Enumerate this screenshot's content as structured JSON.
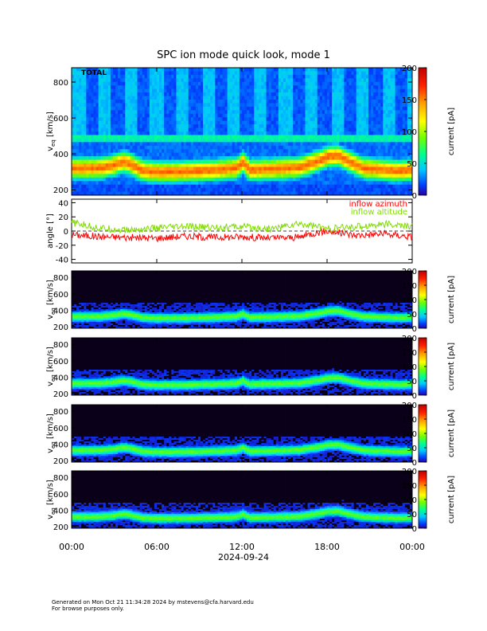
{
  "title": "SPC ion mode quick look, mode 1",
  "chart_data": [
    {
      "type": "heatmap",
      "panel_label": "TOTAL",
      "ylabel": "v_eq [km/s]",
      "ylim": [
        170,
        880
      ],
      "y_ticks": [
        200,
        400,
        600,
        800
      ],
      "colorbar": {
        "label": "current [pA]",
        "range": [
          0,
          200
        ],
        "ticks": [
          0,
          50,
          100,
          150,
          200
        ]
      },
      "x_ticks": [
        "00:00",
        "06:00",
        "12:00",
        "18:00",
        "00:00"
      ],
      "ridge_profile": {
        "time_hours": [
          0,
          1,
          2,
          3,
          3.5,
          4,
          5,
          6,
          8,
          10,
          11.5,
          12,
          12.5,
          14,
          16,
          17.3,
          18,
          18.7,
          19.5,
          20.5,
          22,
          23,
          24
        ],
        "speed_km_s": [
          320,
          320,
          322,
          338,
          355,
          345,
          305,
          300,
          302,
          310,
          320,
          350,
          310,
          315,
          325,
          360,
          385,
          390,
          355,
          320,
          310,
          305,
          310
        ]
      }
    },
    {
      "type": "line",
      "ylabel": "angle [°]",
      "ylim": [
        -45,
        45
      ],
      "y_ticks": [
        -40,
        -20,
        0,
        20,
        40
      ],
      "series": [
        {
          "name": "inflow azimuth",
          "color": "#ff0000",
          "x_hours": [
            0,
            2,
            4,
            6,
            8,
            10,
            12,
            14,
            16,
            17,
            18,
            20,
            22,
            24
          ],
          "values": [
            -5,
            -8,
            -9,
            -10,
            -7,
            -9,
            -8,
            -10,
            -9,
            -3,
            0,
            -6,
            -4,
            -8
          ]
        },
        {
          "name": "inflow altitude",
          "color": "#7fdc00",
          "x_hours": [
            0,
            2,
            4,
            6,
            8,
            10,
            12,
            14,
            16,
            17,
            18,
            20,
            22,
            24
          ],
          "values": [
            12,
            4,
            1,
            4,
            6,
            5,
            6,
            3,
            10,
            8,
            3,
            6,
            10,
            6
          ]
        }
      ]
    },
    {
      "type": "heatmap",
      "ylabel": "v_eq [km/s]",
      "ylim": [
        180,
        880
      ],
      "y_ticks": [
        200,
        400,
        600,
        800
      ],
      "colorbar": {
        "label": "current [pA]",
        "range": [
          0,
          200
        ],
        "ticks": [
          0,
          50,
          100,
          150,
          200
        ]
      }
    },
    {
      "type": "heatmap",
      "ylabel": "v_eq [km/s]",
      "ylim": [
        180,
        880
      ],
      "y_ticks": [
        200,
        400,
        600,
        800
      ],
      "colorbar": {
        "label": "current [pA]",
        "range": [
          0,
          200
        ],
        "ticks": [
          0,
          50,
          100,
          150,
          200
        ]
      }
    },
    {
      "type": "heatmap",
      "ylabel": "v_eq [km/s]",
      "ylim": [
        180,
        880
      ],
      "y_ticks": [
        200,
        400,
        600,
        800
      ],
      "colorbar": {
        "label": "current [pA]",
        "range": [
          0,
          200
        ],
        "ticks": [
          0,
          50,
          100,
          150,
          200
        ]
      }
    },
    {
      "type": "heatmap",
      "ylabel": "v_eq [km/s]",
      "ylim": [
        180,
        880
      ],
      "y_ticks": [
        200,
        400,
        600,
        800
      ],
      "colorbar": {
        "label": "current [pA]",
        "range": [
          0,
          200
        ],
        "ticks": [
          0,
          50,
          100,
          150,
          200
        ]
      }
    }
  ],
  "x_axis": {
    "labels": [
      "00:00",
      "06:00",
      "12:00",
      "18:00",
      "00:00"
    ],
    "date": "2024-09-24"
  },
  "footer": {
    "line1": "Generated on Mon Oct 21 11:34:28 2024 by mstevens@cfa.harvard.edu",
    "line2": "For browse purposes only."
  },
  "colors": {
    "azimuth": "#ff0000",
    "altitude": "#7fdc00"
  }
}
